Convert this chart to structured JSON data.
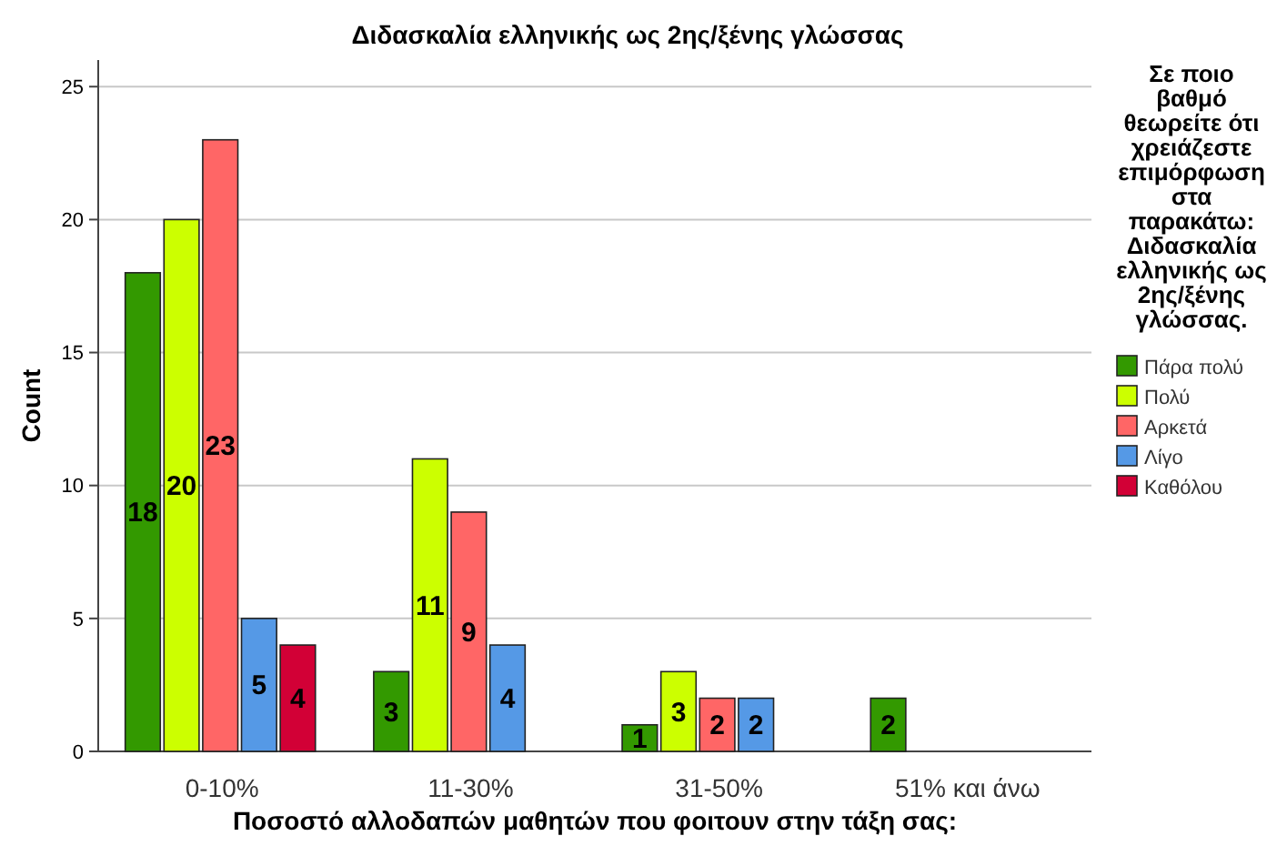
{
  "chart_data": {
    "type": "bar",
    "title": "Διδασκαλία ελληνικής ως 2ης/ξένης γλώσσας",
    "xlabel": "Ποσοστό αλλοδαπών μαθητών που φοιτουν στην τάξη σας:",
    "ylabel": "Count",
    "legend_title": "Σε ποιο βαθμό θεωρείτε ότι χρειάζεστε επιμόρφωση στα παρακάτω: Διδασκαλία ελληνικής ως 2ης/ξένης γλώσσας.",
    "categories": [
      "0-10%",
      "11-30%",
      "31-50%",
      "51% και άνω"
    ],
    "series": [
      {
        "name": "Πάρα πολύ",
        "color": "#339900",
        "values": [
          18,
          3,
          1,
          2
        ]
      },
      {
        "name": "Πολύ",
        "color": "#ccff00",
        "values": [
          20,
          11,
          3,
          null
        ]
      },
      {
        "name": "Αρκετά",
        "color": "#ff6666",
        "values": [
          23,
          9,
          2,
          null
        ]
      },
      {
        "name": "Λίγο",
        "color": "#5599e6",
        "values": [
          5,
          4,
          2,
          null
        ]
      },
      {
        "name": "Καθόλου",
        "color": "#d20036",
        "values": [
          4,
          null,
          null,
          null
        ]
      }
    ],
    "ylim": [
      0,
      26
    ],
    "yticks": [
      0,
      5,
      10,
      15,
      20,
      25
    ],
    "grid": "y",
    "legend": "right",
    "data_labels": true
  }
}
